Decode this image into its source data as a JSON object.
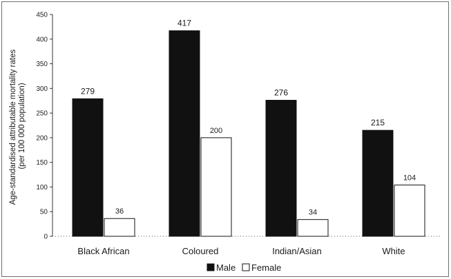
{
  "chart_data": {
    "type": "bar",
    "categories": [
      "Black African",
      "Coloured",
      "Indian/Asian",
      "White"
    ],
    "series": [
      {
        "name": "Male",
        "values": [
          279,
          417,
          276,
          215
        ],
        "color": "#111111"
      },
      {
        "name": "Female",
        "values": [
          36,
          200,
          34,
          104
        ],
        "color": "#ffffff"
      }
    ],
    "ylabel_lines": [
      "Age-standardised attributable mortality rates",
      "(per 100 000 population)"
    ],
    "xlabel": "",
    "ylim": [
      0,
      450
    ],
    "yticks": [
      0,
      50,
      100,
      150,
      200,
      250,
      300,
      350,
      400,
      450
    ],
    "legend_position": "bottom-center",
    "grid": false
  }
}
